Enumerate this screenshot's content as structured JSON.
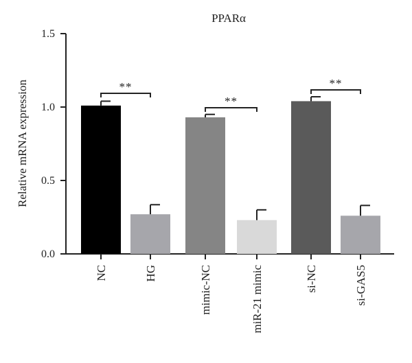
{
  "chart_data": {
    "type": "bar",
    "title": "PPARα",
    "xlabel": "",
    "ylabel": "Relative mRNA expression",
    "ylim": [
      0,
      1.5
    ],
    "yticks": [
      "0.0",
      "0.5",
      "1.0",
      "1.5"
    ],
    "categories": [
      "NC",
      "HG",
      "mimic-NC",
      "miR-21 mimic",
      "si-NC",
      "si-GAS5"
    ],
    "values": [
      1.01,
      0.27,
      0.93,
      0.23,
      1.04,
      0.26
    ],
    "errors": [
      0.03,
      0.065,
      0.02,
      0.07,
      0.03,
      0.07
    ],
    "colors": [
      "#000000",
      "#a6a6ab",
      "#858585",
      "#d9d9d9",
      "#5a5a5a",
      "#a6a6ab"
    ],
    "significance": [
      {
        "from": 0,
        "to": 1,
        "label": "**"
      },
      {
        "from": 2,
        "to": 3,
        "label": "**"
      },
      {
        "from": 4,
        "to": 5,
        "label": "**"
      }
    ]
  }
}
